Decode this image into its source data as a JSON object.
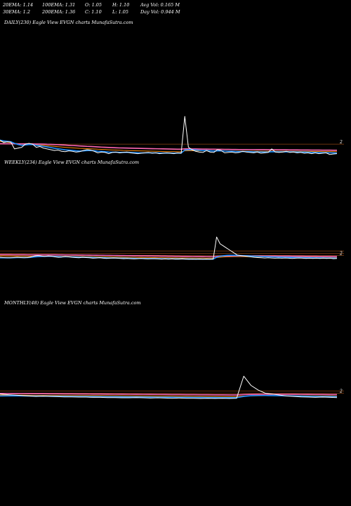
{
  "header": {
    "row1": [
      "20EMA: 1.14",
      "100EMA: 1.31",
      "O: 1.05",
      "H: 1.10",
      "Avg Vol: 0.165  M"
    ],
    "row2": [
      "30EMA: 1.2",
      "200EMA: 1.36",
      "C: 1.10",
      "L: 1.05",
      "Day Vol: 0.944  M"
    ]
  },
  "chart_data": [
    {
      "type": "line",
      "title": "DAILY(230) Eagle   View  EVGN  charts MunafaSutra.com",
      "tick_label": "2",
      "colors": {
        "price": "#ffffff",
        "ema_short": "#1e90ff",
        "ema_mid": "#ff69b4",
        "ema_long": "#ff8c00",
        "ref": "#8b4513"
      },
      "series": [
        {
          "role": "price",
          "values": [
            2.5,
            2.2,
            2.3,
            2.25,
            1.4,
            1.5,
            1.6,
            2.0,
            2.1,
            2.0,
            1.6,
            1.7,
            1.5,
            1.4,
            1.3,
            1.2,
            1.25,
            1.1,
            1.05,
            1.15,
            1.1,
            1.0,
            1.05,
            1.2,
            1.3,
            1.25,
            1.1,
            0.9,
            1.0,
            0.95,
            0.8,
            0.95,
            1.0,
            0.9,
            0.95,
            1.0,
            0.9,
            0.85,
            0.8,
            0.85,
            0.9,
            0.95,
            0.85,
            0.9,
            0.8,
            0.85,
            0.9,
            0.85,
            0.8,
            0.9,
            0.85,
            5.5,
            1.6,
            1.3,
            1.1,
            1.0,
            0.95,
            1.2,
            1.0,
            0.95,
            1.3,
            1.2,
            0.9,
            0.95,
            1.0,
            0.9,
            0.95,
            1.1,
            1.0,
            0.95,
            0.9,
            1.0,
            0.85,
            0.9,
            0.95,
            1.4,
            1.0,
            0.95,
            1.0,
            1.1,
            0.95,
            1.0,
            0.9,
            0.95,
            0.85,
            0.9,
            0.8,
            0.9,
            0.8,
            0.85,
            0.9,
            0.7,
            0.75,
            0.8
          ]
        },
        {
          "role": "ema_short",
          "values": [
            2.5,
            2.4,
            2.35,
            2.3,
            2.1,
            1.95,
            1.85,
            1.9,
            1.95,
            1.95,
            1.85,
            1.8,
            1.72,
            1.65,
            1.57,
            1.48,
            1.42,
            1.35,
            1.28,
            1.25,
            1.21,
            1.16,
            1.13,
            1.15,
            1.18,
            1.19,
            1.17,
            1.1,
            1.08,
            1.05,
            0.99,
            0.98,
            0.98,
            0.96,
            0.96,
            0.97,
            0.95,
            0.93,
            0.91,
            0.9,
            0.9,
            0.91,
            0.9,
            0.9,
            0.88,
            0.87,
            0.88,
            0.87,
            0.86,
            0.87,
            0.87,
            1.26,
            1.28,
            1.29,
            1.26,
            1.22,
            1.18,
            1.19,
            1.16,
            1.13,
            1.15,
            1.16,
            1.12,
            1.1,
            1.09,
            1.07,
            1.06,
            1.07,
            1.06,
            1.05,
            1.03,
            1.03,
            1.01,
            1.0,
            0.99,
            1.05,
            1.04,
            1.03,
            1.03,
            1.04,
            1.03,
            1.03,
            1.01,
            1.0,
            0.99,
            0.98,
            0.96,
            0.95,
            0.94,
            0.93,
            0.93,
            0.91,
            0.89,
            0.88
          ]
        },
        {
          "role": "ema_mid",
          "values": [
            2.05,
            2.05,
            2.05,
            2.05,
            2.05,
            2.04,
            2.04,
            2.04,
            2.03,
            2.03,
            2.02,
            2.01,
            2.0,
            1.98,
            1.97,
            1.95,
            1.93,
            1.9,
            1.88,
            1.85,
            1.82,
            1.8,
            1.77,
            1.75,
            1.72,
            1.7,
            1.68,
            1.65,
            1.62,
            1.6,
            1.58,
            1.56,
            1.54,
            1.52,
            1.51,
            1.5,
            1.49,
            1.48,
            1.47,
            1.46,
            1.45,
            1.44,
            1.43,
            1.42,
            1.41,
            1.4,
            1.39,
            1.38,
            1.37,
            1.36,
            1.36,
            1.4,
            1.4,
            1.39,
            1.39,
            1.38,
            1.37,
            1.37,
            1.36,
            1.36,
            1.35,
            1.35,
            1.34,
            1.34,
            1.33,
            1.33,
            1.32,
            1.32,
            1.32,
            1.31,
            1.31,
            1.3,
            1.3,
            1.3,
            1.29,
            1.29,
            1.29,
            1.28,
            1.28,
            1.28,
            1.27,
            1.27,
            1.27,
            1.26,
            1.26,
            1.26,
            1.25,
            1.25,
            1.25,
            1.24,
            1.24,
            1.24,
            1.23,
            1.23
          ]
        },
        {
          "role": "ema_long",
          "values": [
            2.35,
            2.3,
            2.25,
            2.2,
            2.1,
            2.05,
            2.0,
            1.98,
            1.96,
            1.95,
            1.92,
            1.88,
            1.84,
            1.8,
            1.76,
            1.72,
            1.68,
            1.64,
            1.6,
            1.56,
            1.53,
            1.5,
            1.47,
            1.45,
            1.43,
            1.41,
            1.39,
            1.36,
            1.34,
            1.32,
            1.29,
            1.27,
            1.25,
            1.23,
            1.21,
            1.2,
            1.18,
            1.17,
            1.15,
            1.14,
            1.13,
            1.12,
            1.11,
            1.1,
            1.09,
            1.08,
            1.07,
            1.06,
            1.05,
            1.05,
            1.04,
            1.15,
            1.16,
            1.16,
            1.16,
            1.15,
            1.15,
            1.15,
            1.14,
            1.14,
            1.14,
            1.14,
            1.13,
            1.13,
            1.13,
            1.12,
            1.12,
            1.12,
            1.12,
            1.11,
            1.11,
            1.11,
            1.1,
            1.1,
            1.1,
            1.11,
            1.11,
            1.1,
            1.1,
            1.1,
            1.1,
            1.1,
            1.1,
            1.09,
            1.09,
            1.09,
            1.08,
            1.08,
            1.08,
            1.07,
            1.07,
            1.07,
            1.06,
            1.06
          ]
        }
      ],
      "ref_levels": [
        2.0
      ]
    },
    {
      "type": "line",
      "title": "WEEKLY(234) Eagle   View  EVGN  charts MunafaSutra.com",
      "tick_label": "2",
      "colors": {
        "price": "#ffffff",
        "ema_short": "#1e90ff",
        "ema_mid": "#ff69b4",
        "ema_long": "#ff8c00",
        "ref": "#8b4513"
      },
      "series": [
        {
          "role": "price",
          "values": [
            1.0,
            0.95,
            0.9,
            0.9,
            0.95,
            1.0,
            0.95,
            0.9,
            0.95,
            1.1,
            1.3,
            1.4,
            1.3,
            1.2,
            1.3,
            1.25,
            1.1,
            1.0,
            1.05,
            1.2,
            1.1,
            1.0,
            0.95,
            0.9,
            1.0,
            0.95,
            0.9,
            0.8,
            0.85,
            0.9,
            0.8,
            0.75,
            0.8,
            0.85,
            0.8,
            0.75,
            0.7,
            0.75,
            0.7,
            0.65,
            0.7,
            0.75,
            0.7,
            0.65,
            0.7,
            0.7,
            0.65,
            0.6,
            0.65,
            0.6,
            0.65,
            0.6,
            0.6,
            0.65,
            0.6,
            0.55,
            0.6,
            0.55,
            0.6,
            0.55,
            0.6,
            0.55,
            0.6,
            5.5,
            4.0,
            3.5,
            3.0,
            2.5,
            2.0,
            1.5,
            1.4,
            1.3,
            1.2,
            1.1,
            1.0,
            0.95,
            0.9,
            0.85,
            0.9,
            0.85,
            0.8,
            0.85,
            0.8,
            0.85,
            0.8,
            0.75,
            0.8,
            0.85,
            0.8,
            0.75,
            0.8,
            0.75,
            0.8,
            0.75,
            0.8,
            0.75,
            0.8,
            0.7,
            0.75
          ]
        },
        {
          "role": "ema_short",
          "values": [
            0.9,
            0.9,
            0.9,
            0.9,
            0.92,
            0.95,
            0.96,
            0.95,
            0.96,
            1.0,
            1.08,
            1.15,
            1.18,
            1.2,
            1.22,
            1.22,
            1.19,
            1.15,
            1.12,
            1.13,
            1.12,
            1.1,
            1.07,
            1.04,
            1.03,
            1.01,
            0.99,
            0.96,
            0.94,
            0.93,
            0.91,
            0.88,
            0.86,
            0.86,
            0.85,
            0.83,
            0.81,
            0.8,
            0.78,
            0.76,
            0.75,
            0.75,
            0.74,
            0.73,
            0.72,
            0.72,
            0.71,
            0.69,
            0.69,
            0.68,
            0.67,
            0.66,
            0.66,
            0.66,
            0.65,
            0.64,
            0.63,
            0.62,
            0.62,
            0.61,
            0.61,
            0.6,
            0.6,
            1.02,
            1.22,
            1.34,
            1.42,
            1.45,
            1.44,
            1.4,
            1.38,
            1.35,
            1.32,
            1.29,
            1.25,
            1.22,
            1.18,
            1.15,
            1.13,
            1.1,
            1.08,
            1.06,
            1.04,
            1.02,
            1.0,
            0.98,
            0.96,
            0.95,
            0.94,
            0.92,
            0.91,
            0.9,
            0.89,
            0.88,
            0.87,
            0.86,
            0.85,
            0.84,
            0.83
          ]
        },
        {
          "role": "ema_mid",
          "values": [
            1.6,
            1.6,
            1.59,
            1.59,
            1.58,
            1.58,
            1.57,
            1.57,
            1.56,
            1.56,
            1.56,
            1.56,
            1.56,
            1.56,
            1.56,
            1.55,
            1.55,
            1.54,
            1.54,
            1.53,
            1.53,
            1.52,
            1.51,
            1.5,
            1.5,
            1.49,
            1.48,
            1.47,
            1.46,
            1.45,
            1.44,
            1.43,
            1.42,
            1.41,
            1.4,
            1.39,
            1.38,
            1.37,
            1.36,
            1.35,
            1.34,
            1.33,
            1.32,
            1.31,
            1.3,
            1.29,
            1.28,
            1.27,
            1.26,
            1.25,
            1.24,
            1.23,
            1.22,
            1.21,
            1.2,
            1.19,
            1.18,
            1.17,
            1.16,
            1.15,
            1.14,
            1.13,
            1.12,
            1.2,
            1.25,
            1.28,
            1.3,
            1.31,
            1.32,
            1.32,
            1.32,
            1.32,
            1.32,
            1.31,
            1.31,
            1.3,
            1.3,
            1.29,
            1.29,
            1.28,
            1.28,
            1.27,
            1.27,
            1.26,
            1.26,
            1.25,
            1.25,
            1.24,
            1.24,
            1.23,
            1.23,
            1.22,
            1.22,
            1.21,
            1.21,
            1.2,
            1.2,
            1.19,
            1.19
          ]
        },
        {
          "role": "ema_long",
          "values": [
            1.3,
            1.29,
            1.28,
            1.27,
            1.26,
            1.25,
            1.24,
            1.23,
            1.22,
            1.22,
            1.22,
            1.23,
            1.23,
            1.23,
            1.24,
            1.24,
            1.23,
            1.22,
            1.22,
            1.21,
            1.21,
            1.2,
            1.19,
            1.18,
            1.17,
            1.16,
            1.15,
            1.14,
            1.13,
            1.12,
            1.1,
            1.09,
            1.08,
            1.07,
            1.06,
            1.05,
            1.03,
            1.02,
            1.01,
            1.0,
            0.99,
            0.98,
            0.97,
            0.96,
            0.95,
            0.94,
            0.93,
            0.92,
            0.91,
            0.9,
            0.89,
            0.88,
            0.87,
            0.87,
            0.86,
            0.85,
            0.84,
            0.83,
            0.83,
            0.82,
            0.81,
            0.81,
            0.8,
            0.95,
            1.03,
            1.08,
            1.12,
            1.14,
            1.15,
            1.15,
            1.15,
            1.15,
            1.14,
            1.14,
            1.13,
            1.12,
            1.11,
            1.1,
            1.09,
            1.09,
            1.08,
            1.07,
            1.06,
            1.05,
            1.04,
            1.03,
            1.03,
            1.02,
            1.01,
            1.0,
            0.99,
            0.99,
            0.98,
            0.97,
            0.97,
            0.96,
            0.95,
            0.95,
            0.94
          ]
        }
      ],
      "ref_levels": [
        2.4,
        1.9,
        1.45
      ]
    },
    {
      "type": "line",
      "title": "MONTHLY(48) Eagle   View  EVGN  charts MunafaSutra.com",
      "tick_label": "2",
      "colors": {
        "price": "#ffffff",
        "ema_short": "#1e90ff",
        "ema_mid": "#ff69b4",
        "ema_long": "#ff8c00",
        "ref": "#8b4513"
      },
      "series": [
        {
          "role": "price",
          "values": [
            1.6,
            1.5,
            1.4,
            1.3,
            1.2,
            1.1,
            1.15,
            1.1,
            1.05,
            1.0,
            1.0,
            0.95,
            0.95,
            0.9,
            0.9,
            0.85,
            0.85,
            0.8,
            0.8,
            0.85,
            0.8,
            0.75,
            0.8,
            0.75,
            0.7,
            0.75,
            0.7,
            0.7,
            0.65,
            0.7,
            0.65,
            0.7,
            0.65,
            0.7,
            5.5,
            3.5,
            2.5,
            1.8,
            1.6,
            1.4,
            1.2,
            1.1,
            1.0,
            0.95,
            0.9,
            0.95,
            0.9,
            0.85
          ]
        },
        {
          "role": "ema_short",
          "values": [
            1.2,
            1.21,
            1.22,
            1.21,
            1.2,
            1.18,
            1.17,
            1.16,
            1.14,
            1.12,
            1.11,
            1.09,
            1.08,
            1.06,
            1.05,
            1.03,
            1.02,
            1.0,
            0.99,
            0.98,
            0.97,
            0.95,
            0.94,
            0.93,
            0.91,
            0.9,
            0.89,
            0.88,
            0.87,
            0.86,
            0.85,
            0.84,
            0.83,
            0.83,
            1.1,
            1.25,
            1.3,
            1.3,
            1.28,
            1.25,
            1.22,
            1.19,
            1.16,
            1.13,
            1.1,
            1.08,
            1.06,
            1.04
          ]
        },
        {
          "role": "ema_mid",
          "values": [
            1.75,
            1.74,
            1.73,
            1.72,
            1.71,
            1.7,
            1.69,
            1.68,
            1.67,
            1.66,
            1.65,
            1.64,
            1.63,
            1.62,
            1.61,
            1.6,
            1.59,
            1.58,
            1.57,
            1.56,
            1.55,
            1.54,
            1.53,
            1.52,
            1.51,
            1.5,
            1.49,
            1.48,
            1.47,
            1.46,
            1.45,
            1.44,
            1.43,
            1.42,
            1.5,
            1.54,
            1.56,
            1.57,
            1.57,
            1.57,
            1.56,
            1.56,
            1.55,
            1.54,
            1.53,
            1.52,
            1.51,
            1.5
          ]
        },
        {
          "role": "ema_long",
          "values": [
            1.4,
            1.39,
            1.38,
            1.37,
            1.36,
            1.35,
            1.34,
            1.33,
            1.32,
            1.31,
            1.3,
            1.29,
            1.28,
            1.27,
            1.26,
            1.25,
            1.24,
            1.23,
            1.22,
            1.21,
            1.2,
            1.19,
            1.18,
            1.17,
            1.16,
            1.15,
            1.14,
            1.13,
            1.12,
            1.11,
            1.1,
            1.09,
            1.08,
            1.07,
            1.18,
            1.23,
            1.25,
            1.26,
            1.26,
            1.26,
            1.25,
            1.25,
            1.24,
            1.23,
            1.22,
            1.21,
            1.2,
            1.19
          ]
        }
      ],
      "ref_levels": [
        2.3,
        1.8
      ]
    }
  ]
}
